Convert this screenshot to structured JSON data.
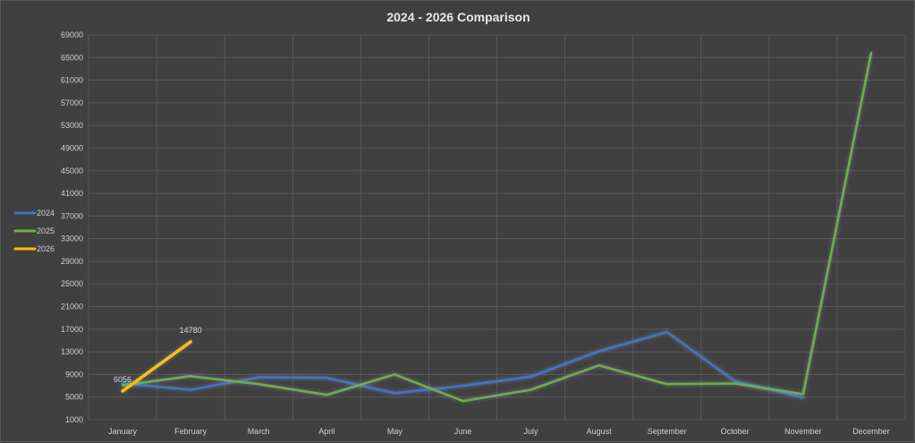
{
  "chart_data": {
    "type": "line",
    "title": "2024 - 2026 Comparison",
    "xlabel": "",
    "ylabel": "",
    "categories": [
      "January",
      "February",
      "March",
      "April",
      "May",
      "June",
      "July",
      "August",
      "September",
      "October",
      "November",
      "December"
    ],
    "ylim": [
      1000,
      69000
    ],
    "yticks": [
      1000,
      5000,
      9000,
      13000,
      17000,
      21000,
      25000,
      29000,
      33000,
      37000,
      41000,
      45000,
      49000,
      53000,
      57000,
      61000,
      65000,
      69000
    ],
    "grid": true,
    "legend_position": "left",
    "series": [
      {
        "name": "2024",
        "color": "#4472c4",
        "values": [
          7400,
          6300,
          8500,
          8400,
          5700,
          7000,
          8600,
          13100,
          16500,
          7800,
          4900,
          null
        ]
      },
      {
        "name": "2025",
        "color": "#70ad47",
        "values": [
          7100,
          8700,
          7300,
          5400,
          9000,
          4300,
          6300,
          10600,
          7300,
          7400,
          5500,
          65800
        ]
      },
      {
        "name": "2026",
        "color": "#ffc000",
        "values": [
          6056,
          14780,
          null,
          null,
          null,
          null,
          null,
          null,
          null,
          null,
          null,
          null
        ]
      }
    ],
    "data_labels": [
      {
        "series": "2026",
        "index": 0,
        "text": "6056"
      },
      {
        "series": "2026",
        "index": 1,
        "text": "14780"
      }
    ]
  }
}
